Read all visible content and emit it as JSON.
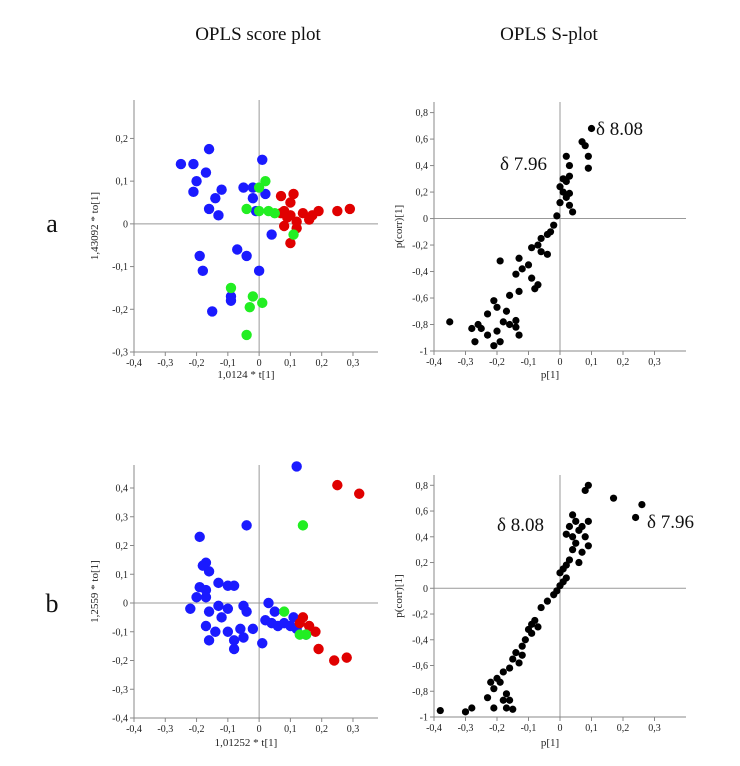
{
  "figure": {
    "column_titles": [
      "OPLS score plot",
      "OPLS S-plot"
    ],
    "row_labels": [
      "a",
      "b"
    ]
  },
  "colors": {
    "blue": "#1a1aff",
    "red": "#e00000",
    "green": "#22ee22",
    "black": "#000000"
  },
  "chart_data": [
    {
      "type": "scatter",
      "panel": "a-score",
      "title": "OPLS score plot",
      "row": "a",
      "xlabel": "1,0124 * t[1]",
      "ylabel": "1,43092 * to[1]",
      "xlim": [
        -0.4,
        0.38
      ],
      "ylim": [
        -0.3,
        0.29
      ],
      "xticks": [
        "-0,4",
        "-0,3",
        "-0,2",
        "-0,1",
        "0",
        "0,1",
        "0,2",
        "0,3"
      ],
      "yticks": [
        "-0,3",
        "-0,2",
        "-0,1",
        "0",
        "0,1",
        "0,2"
      ],
      "series": [
        {
          "color": "blue",
          "points": [
            [
              -0.25,
              0.14
            ],
            [
              -0.21,
              0.14
            ],
            [
              -0.16,
              0.175
            ],
            [
              -0.2,
              0.1
            ],
            [
              -0.17,
              0.12
            ],
            [
              -0.21,
              0.075
            ],
            [
              -0.14,
              0.06
            ],
            [
              -0.12,
              0.08
            ],
            [
              -0.16,
              0.035
            ],
            [
              -0.13,
              0.02
            ],
            [
              -0.05,
              0.085
            ],
            [
              -0.02,
              0.085
            ],
            [
              -0.02,
              0.06
            ],
            [
              0.01,
              0.15
            ],
            [
              0.02,
              0.07
            ],
            [
              -0.01,
              0.03
            ],
            [
              0.04,
              -0.025
            ],
            [
              -0.19,
              -0.075
            ],
            [
              -0.18,
              -0.11
            ],
            [
              -0.07,
              -0.06
            ],
            [
              -0.04,
              -0.075
            ],
            [
              0.0,
              -0.11
            ],
            [
              -0.09,
              -0.17
            ],
            [
              -0.09,
              -0.18
            ],
            [
              -0.15,
              -0.205
            ]
          ]
        },
        {
          "color": "red",
          "points": [
            [
              0.07,
              0.065
            ],
            [
              0.1,
              0.05
            ],
            [
              0.11,
              0.07
            ],
            [
              0.07,
              0.025
            ],
            [
              0.08,
              0.03
            ],
            [
              0.09,
              0.015
            ],
            [
              0.1,
              0.02
            ],
            [
              0.12,
              0.005
            ],
            [
              0.14,
              0.025
            ],
            [
              0.16,
              0.01
            ],
            [
              0.17,
              0.02
            ],
            [
              0.19,
              0.03
            ],
            [
              0.25,
              0.03
            ],
            [
              0.29,
              0.035
            ],
            [
              0.08,
              -0.005
            ],
            [
              0.12,
              -0.01
            ],
            [
              0.1,
              -0.045
            ]
          ]
        },
        {
          "color": "green",
          "points": [
            [
              0.02,
              0.1
            ],
            [
              0.0,
              0.085
            ],
            [
              -0.04,
              0.035
            ],
            [
              0.03,
              0.03
            ],
            [
              0.05,
              0.025
            ],
            [
              0.0,
              0.03
            ],
            [
              0.11,
              -0.025
            ],
            [
              -0.09,
              -0.15
            ],
            [
              -0.02,
              -0.17
            ],
            [
              0.01,
              -0.185
            ],
            [
              -0.03,
              -0.195
            ],
            [
              -0.04,
              -0.26
            ]
          ]
        }
      ]
    },
    {
      "type": "scatter",
      "panel": "a-splot",
      "title": "OPLS S-plot",
      "row": "a",
      "xlabel": "p[1]",
      "ylabel": "p(corr)[1]",
      "xlim": [
        -0.4,
        0.4
      ],
      "ylim": [
        -1.0,
        0.88
      ],
      "xticks": [
        "-0,4",
        "-0,3",
        "-0,2",
        "-0,1",
        "0",
        "0,1",
        "0,2",
        "0,3"
      ],
      "yticks": [
        "-1",
        "-0,8",
        "-0,6",
        "-0,4",
        "-0,2",
        "0",
        "0,2",
        "0,4",
        "0,6",
        "0,8"
      ],
      "annotations": [
        "δ 7.96",
        "δ 8.08"
      ],
      "series": [
        {
          "color": "black",
          "points": [
            [
              0.1,
              0.68
            ],
            [
              0.07,
              0.58
            ],
            [
              0.08,
              0.55
            ],
            [
              0.02,
              0.47
            ],
            [
              0.09,
              0.47
            ],
            [
              0.03,
              0.4
            ],
            [
              0.09,
              0.38
            ],
            [
              0.03,
              0.32
            ],
            [
              0.01,
              0.3
            ],
            [
              0.02,
              0.28
            ],
            [
              0.0,
              0.24
            ],
            [
              0.01,
              0.2
            ],
            [
              0.03,
              0.19
            ],
            [
              0.02,
              0.16
            ],
            [
              0.0,
              0.12
            ],
            [
              0.03,
              0.1
            ],
            [
              0.04,
              0.05
            ],
            [
              -0.01,
              0.02
            ],
            [
              -0.02,
              -0.05
            ],
            [
              -0.03,
              -0.1
            ],
            [
              -0.04,
              -0.12
            ],
            [
              -0.06,
              -0.15
            ],
            [
              -0.07,
              -0.2
            ],
            [
              -0.09,
              -0.22
            ],
            [
              -0.06,
              -0.25
            ],
            [
              -0.04,
              -0.27
            ],
            [
              -0.13,
              -0.3
            ],
            [
              -0.19,
              -0.32
            ],
            [
              -0.1,
              -0.35
            ],
            [
              -0.12,
              -0.38
            ],
            [
              -0.14,
              -0.42
            ],
            [
              -0.09,
              -0.45
            ],
            [
              -0.07,
              -0.5
            ],
            [
              -0.08,
              -0.53
            ],
            [
              -0.13,
              -0.55
            ],
            [
              -0.16,
              -0.58
            ],
            [
              -0.21,
              -0.62
            ],
            [
              -0.2,
              -0.67
            ],
            [
              -0.17,
              -0.7
            ],
            [
              -0.23,
              -0.72
            ],
            [
              -0.14,
              -0.77
            ],
            [
              -0.18,
              -0.78
            ],
            [
              -0.26,
              -0.8
            ],
            [
              -0.16,
              -0.8
            ],
            [
              -0.2,
              -0.85
            ],
            [
              -0.14,
              -0.82
            ],
            [
              -0.13,
              -0.88
            ],
            [
              -0.23,
              -0.88
            ],
            [
              -0.28,
              -0.83
            ],
            [
              -0.25,
              -0.83
            ],
            [
              -0.35,
              -0.78
            ],
            [
              -0.27,
              -0.93
            ],
            [
              -0.21,
              -0.96
            ],
            [
              -0.19,
              -0.93
            ]
          ]
        }
      ]
    },
    {
      "type": "scatter",
      "panel": "b-score",
      "title": "OPLS score plot",
      "row": "b",
      "xlabel": "1,01252 * t[1]",
      "ylabel": "1,2559 * to[1]",
      "xlim": [
        -0.4,
        0.38
      ],
      "ylim": [
        -0.4,
        0.48
      ],
      "xticks": [
        "-0,4",
        "-0,3",
        "-0,2",
        "-0,1",
        "0",
        "0,1",
        "0,2",
        "0,3"
      ],
      "yticks": [
        "-0,4",
        "-0,3",
        "-0,2",
        "-0,1",
        "0",
        "0,1",
        "0,2",
        "0,3",
        "0,4"
      ],
      "series": [
        {
          "color": "blue",
          "points": [
            [
              0.12,
              0.475
            ],
            [
              -0.04,
              0.27
            ],
            [
              -0.19,
              0.23
            ],
            [
              -0.17,
              0.14
            ],
            [
              -0.18,
              0.13
            ],
            [
              -0.16,
              0.11
            ],
            [
              -0.19,
              0.055
            ],
            [
              -0.17,
              0.045
            ],
            [
              -0.13,
              0.07
            ],
            [
              -0.1,
              0.06
            ],
            [
              -0.08,
              0.06
            ],
            [
              -0.2,
              0.02
            ],
            [
              -0.17,
              0.02
            ],
            [
              -0.22,
              -0.02
            ],
            [
              -0.16,
              -0.03
            ],
            [
              -0.13,
              -0.01
            ],
            [
              -0.12,
              -0.05
            ],
            [
              -0.1,
              -0.02
            ],
            [
              -0.05,
              -0.01
            ],
            [
              -0.04,
              -0.03
            ],
            [
              0.03,
              0.0
            ],
            [
              0.05,
              -0.03
            ],
            [
              -0.17,
              -0.08
            ],
            [
              -0.14,
              -0.1
            ],
            [
              -0.1,
              -0.1
            ],
            [
              -0.08,
              -0.13
            ],
            [
              -0.06,
              -0.09
            ],
            [
              -0.05,
              -0.12
            ],
            [
              -0.02,
              -0.09
            ],
            [
              -0.16,
              -0.13
            ],
            [
              -0.08,
              -0.16
            ],
            [
              0.01,
              -0.14
            ],
            [
              0.02,
              -0.06
            ],
            [
              0.04,
              -0.07
            ],
            [
              0.06,
              -0.08
            ],
            [
              0.08,
              -0.07
            ],
            [
              0.1,
              -0.08
            ],
            [
              0.11,
              -0.05
            ],
            [
              0.12,
              -0.09
            ],
            [
              0.15,
              -0.11
            ]
          ]
        },
        {
          "color": "red",
          "points": [
            [
              0.25,
              0.41
            ],
            [
              0.32,
              0.38
            ],
            [
              0.14,
              -0.05
            ],
            [
              0.13,
              -0.07
            ],
            [
              0.16,
              -0.08
            ],
            [
              0.18,
              -0.1
            ],
            [
              0.19,
              -0.16
            ],
            [
              0.24,
              -0.2
            ],
            [
              0.28,
              -0.19
            ]
          ]
        },
        {
          "color": "green",
          "points": [
            [
              0.14,
              0.27
            ],
            [
              0.08,
              -0.03
            ],
            [
              0.13,
              -0.11
            ],
            [
              0.15,
              -0.11
            ]
          ]
        }
      ]
    },
    {
      "type": "scatter",
      "panel": "b-splot",
      "title": "OPLS S-plot",
      "row": "b",
      "xlabel": "p[1]",
      "ylabel": "p(corr)[1]",
      "xlim": [
        -0.4,
        0.4
      ],
      "ylim": [
        -1.0,
        0.88
      ],
      "xticks": [
        "-0,4",
        "-0,3",
        "-0,2",
        "-0,1",
        "0",
        "0,1",
        "0,2",
        "0,3"
      ],
      "yticks": [
        "-1",
        "-0,8",
        "-0,6",
        "-0,4",
        "-0,2",
        "0",
        "0,2",
        "0,4",
        "0,6",
        "0,8"
      ],
      "annotations": [
        "δ 8.08",
        "δ 7.96"
      ],
      "series": [
        {
          "color": "black",
          "points": [
            [
              0.09,
              0.8
            ],
            [
              0.08,
              0.76
            ],
            [
              0.17,
              0.7
            ],
            [
              0.26,
              0.65
            ],
            [
              0.24,
              0.55
            ],
            [
              0.04,
              0.57
            ],
            [
              0.05,
              0.52
            ],
            [
              0.09,
              0.52
            ],
            [
              0.03,
              0.48
            ],
            [
              0.07,
              0.48
            ],
            [
              0.06,
              0.45
            ],
            [
              0.02,
              0.42
            ],
            [
              0.04,
              0.4
            ],
            [
              0.08,
              0.4
            ],
            [
              0.05,
              0.35
            ],
            [
              0.09,
              0.33
            ],
            [
              0.04,
              0.3
            ],
            [
              0.07,
              0.28
            ],
            [
              0.03,
              0.22
            ],
            [
              0.06,
              0.2
            ],
            [
              0.02,
              0.18
            ],
            [
              0.01,
              0.15
            ],
            [
              0.0,
              0.12
            ],
            [
              0.02,
              0.08
            ],
            [
              0.01,
              0.05
            ],
            [
              0.0,
              0.02
            ],
            [
              -0.01,
              -0.02
            ],
            [
              -0.02,
              -0.05
            ],
            [
              -0.04,
              -0.1
            ],
            [
              -0.06,
              -0.15
            ],
            [
              -0.08,
              -0.25
            ],
            [
              -0.07,
              -0.3
            ],
            [
              -0.09,
              -0.28
            ],
            [
              -0.1,
              -0.32
            ],
            [
              -0.09,
              -0.35
            ],
            [
              -0.11,
              -0.4
            ],
            [
              -0.12,
              -0.45
            ],
            [
              -0.14,
              -0.5
            ],
            [
              -0.12,
              -0.52
            ],
            [
              -0.15,
              -0.55
            ],
            [
              -0.13,
              -0.58
            ],
            [
              -0.16,
              -0.62
            ],
            [
              -0.18,
              -0.65
            ],
            [
              -0.2,
              -0.7
            ],
            [
              -0.22,
              -0.73
            ],
            [
              -0.19,
              -0.73
            ],
            [
              -0.21,
              -0.78
            ],
            [
              -0.17,
              -0.82
            ],
            [
              -0.23,
              -0.85
            ],
            [
              -0.18,
              -0.87
            ],
            [
              -0.16,
              -0.87
            ],
            [
              -0.28,
              -0.93
            ],
            [
              -0.21,
              -0.93
            ],
            [
              -0.17,
              -0.93
            ],
            [
              -0.15,
              -0.94
            ],
            [
              -0.3,
              -0.96
            ],
            [
              -0.38,
              -0.95
            ]
          ]
        }
      ]
    }
  ]
}
